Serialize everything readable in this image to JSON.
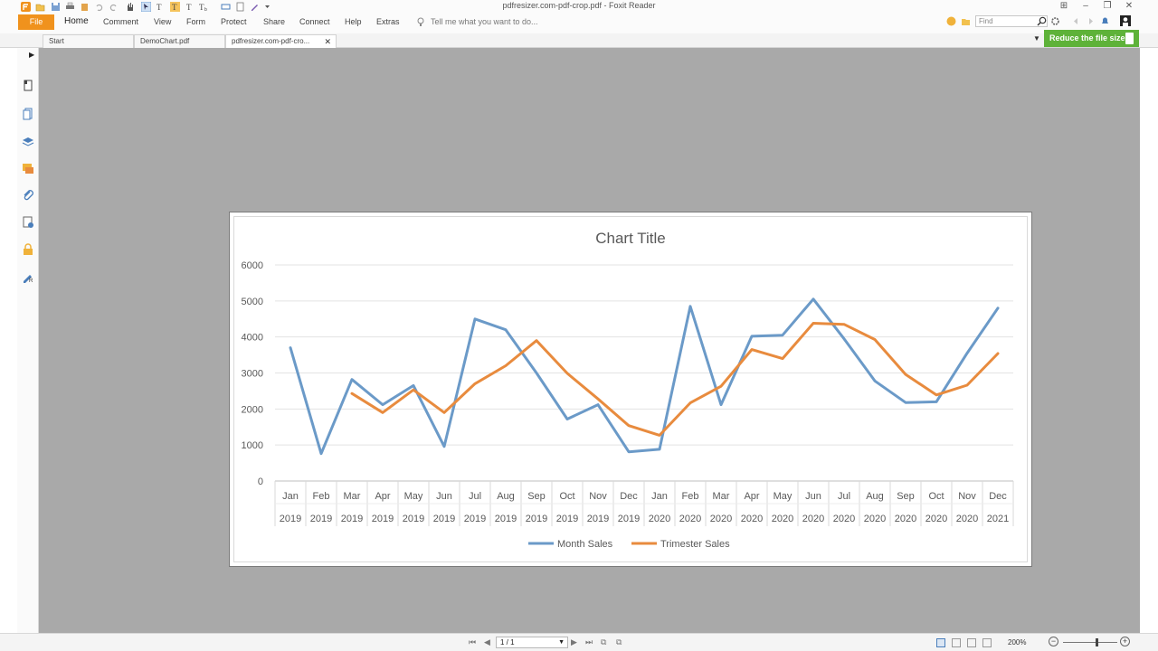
{
  "window": {
    "title": "pdfresizer.com-pdf-crop.pdf - Foxit Reader"
  },
  "ribbon": {
    "file_label": "File",
    "tabs": [
      "Home",
      "Comment",
      "View",
      "Form",
      "Protect",
      "Share",
      "Connect",
      "Help",
      "Extras"
    ],
    "active_tab": "Home",
    "tell_me_placeholder": "Tell me what you want to do...",
    "find_placeholder": "Find"
  },
  "doc_tabs": [
    {
      "label": "Start"
    },
    {
      "label": "DemoChart.pdf"
    },
    {
      "label": "pdfresizer.com-pdf-cro...",
      "active": true
    }
  ],
  "promo": {
    "label": "Reduce the file size"
  },
  "sidebar": {
    "icons": [
      "pages-icon",
      "bookmarks-icon",
      "layers-icon",
      "comments-icon",
      "attachments-icon",
      "signature-icon",
      "security-icon",
      "fill-sign-icon"
    ]
  },
  "statusbar": {
    "page_indicator": "1 / 1",
    "zoom": "200%"
  },
  "colors": {
    "file_tab": "#f0921d",
    "promo": "#5eb239",
    "doc_background": "#a9a9a9",
    "series_month": "#6b9ac8",
    "series_trimester": "#e88b3e"
  },
  "chart_data": {
    "type": "line",
    "title": "Chart Title",
    "xlabel": "",
    "ylabel": "",
    "ylim": [
      0,
      6000
    ],
    "yticks": [
      0,
      1000,
      2000,
      3000,
      4000,
      5000,
      6000
    ],
    "grid": true,
    "legend": "bottom",
    "categories": [
      {
        "month": "Jan",
        "year": "2019"
      },
      {
        "month": "Feb",
        "year": "2019"
      },
      {
        "month": "Mar",
        "year": "2019"
      },
      {
        "month": "Apr",
        "year": "2019"
      },
      {
        "month": "May",
        "year": "2019"
      },
      {
        "month": "Jun",
        "year": "2019"
      },
      {
        "month": "Jul",
        "year": "2019"
      },
      {
        "month": "Aug",
        "year": "2019"
      },
      {
        "month": "Sep",
        "year": "2019"
      },
      {
        "month": "Oct",
        "year": "2019"
      },
      {
        "month": "Nov",
        "year": "2019"
      },
      {
        "month": "Dec",
        "year": "2019"
      },
      {
        "month": "Jan",
        "year": "2020"
      },
      {
        "month": "Feb",
        "year": "2020"
      },
      {
        "month": "Mar",
        "year": "2020"
      },
      {
        "month": "Apr",
        "year": "2020"
      },
      {
        "month": "May",
        "year": "2020"
      },
      {
        "month": "Jun",
        "year": "2020"
      },
      {
        "month": "Jul",
        "year": "2020"
      },
      {
        "month": "Aug",
        "year": "2020"
      },
      {
        "month": "Sep",
        "year": "2020"
      },
      {
        "month": "Oct",
        "year": "2020"
      },
      {
        "month": "Nov",
        "year": "2020"
      },
      {
        "month": "Dec",
        "year": "2021"
      }
    ],
    "series": [
      {
        "name": "Month Sales",
        "color": "#6b9ac8",
        "values": [
          3700,
          760,
          2820,
          2120,
          2650,
          960,
          4500,
          4200,
          3000,
          1720,
          2120,
          810,
          880,
          4850,
          2120,
          4020,
          4050,
          5050,
          3950,
          2780,
          2180,
          2200,
          3550,
          4800
        ]
      },
      {
        "name": "Trimester Sales",
        "color": "#e88b3e",
        "values": [
          null,
          null,
          2430,
          1900,
          2530,
          1900,
          2700,
          3200,
          3900,
          2990,
          2280,
          1540,
          1270,
          2170,
          2630,
          3650,
          3400,
          4380,
          4350,
          3930,
          2960,
          2390,
          2660,
          3540
        ]
      }
    ]
  }
}
